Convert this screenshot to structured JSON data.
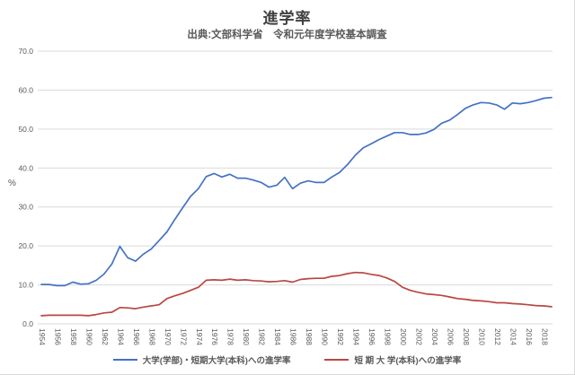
{
  "chart": {
    "title": "進学率",
    "subtitle": "出典:文部科学省　令和元年度学校基本調査",
    "y_unit": "%"
  },
  "chart_data": {
    "type": "line",
    "title": "進学率",
    "subtitle": "出典:文部科学省　令和元年度学校基本調査",
    "ylabel": "%",
    "ylim": [
      0,
      70
    ],
    "grid": true,
    "legend_position": "bottom",
    "gridline_color": "#d9d9d9",
    "y_ticks": [
      "0.0",
      "10.0",
      "20.0",
      "30.0",
      "40.0",
      "50.0",
      "60.0",
      "70.0"
    ],
    "x_tick_years": [
      1954,
      1956,
      1958,
      1960,
      1962,
      1964,
      1966,
      1968,
      1970,
      1972,
      1974,
      1976,
      1978,
      1980,
      1982,
      1984,
      1986,
      1988,
      1990,
      1992,
      1994,
      1996,
      1998,
      2000,
      2002,
      2004,
      2006,
      2008,
      2010,
      2012,
      2014,
      2016,
      2018
    ],
    "x": [
      1954,
      1955,
      1956,
      1957,
      1958,
      1959,
      1960,
      1961,
      1962,
      1963,
      1964,
      1965,
      1966,
      1967,
      1968,
      1969,
      1970,
      1971,
      1972,
      1973,
      1974,
      1975,
      1976,
      1977,
      1978,
      1979,
      1980,
      1981,
      1982,
      1983,
      1984,
      1985,
      1986,
      1987,
      1988,
      1989,
      1990,
      1991,
      1992,
      1993,
      1994,
      1995,
      1996,
      1997,
      1998,
      1999,
      2000,
      2001,
      2002,
      2003,
      2004,
      2005,
      2006,
      2007,
      2008,
      2009,
      2010,
      2011,
      2012,
      2013,
      2014,
      2015,
      2016,
      2017,
      2018,
      2019
    ],
    "series": [
      {
        "name": "大学(学部)・短期大学(本科)への進学率",
        "color": "#4472c4",
        "values": [
          10.1,
          10.1,
          9.8,
          9.8,
          10.7,
          10.2,
          10.3,
          11.2,
          12.8,
          15.4,
          19.9,
          17.0,
          16.1,
          17.9,
          19.2,
          21.4,
          23.6,
          26.8,
          29.8,
          32.7,
          34.7,
          37.8,
          38.6,
          37.7,
          38.4,
          37.4,
          37.4,
          36.9,
          36.3,
          35.1,
          35.6,
          37.6,
          34.7,
          36.1,
          36.7,
          36.3,
          36.3,
          37.7,
          38.9,
          40.9,
          43.3,
          45.2,
          46.2,
          47.3,
          48.2,
          49.1,
          49.1,
          48.6,
          48.6,
          49.0,
          49.9,
          51.5,
          52.3,
          53.7,
          55.3,
          56.2,
          56.8,
          56.7,
          56.2,
          55.1,
          56.7,
          56.5,
          56.8,
          57.3,
          57.9,
          58.1
        ]
      },
      {
        "name": "短 期 大 学(本科)への進学率",
        "color": "#b94742",
        "values": [
          2.1,
          2.2,
          2.2,
          2.2,
          2.2,
          2.2,
          2.1,
          2.4,
          2.8,
          3.0,
          4.2,
          4.1,
          3.9,
          4.3,
          4.6,
          4.9,
          6.5,
          7.2,
          7.8,
          8.6,
          9.4,
          11.2,
          11.3,
          11.2,
          11.5,
          11.2,
          11.3,
          11.1,
          11.0,
          10.8,
          10.9,
          11.1,
          10.7,
          11.4,
          11.6,
          11.7,
          11.7,
          12.2,
          12.4,
          12.9,
          13.2,
          13.1,
          12.7,
          12.4,
          11.8,
          10.9,
          9.4,
          8.6,
          8.1,
          7.7,
          7.5,
          7.3,
          6.9,
          6.5,
          6.3,
          6.0,
          5.9,
          5.7,
          5.4,
          5.4,
          5.2,
          5.1,
          4.9,
          4.7,
          4.6,
          4.4
        ]
      }
    ]
  }
}
